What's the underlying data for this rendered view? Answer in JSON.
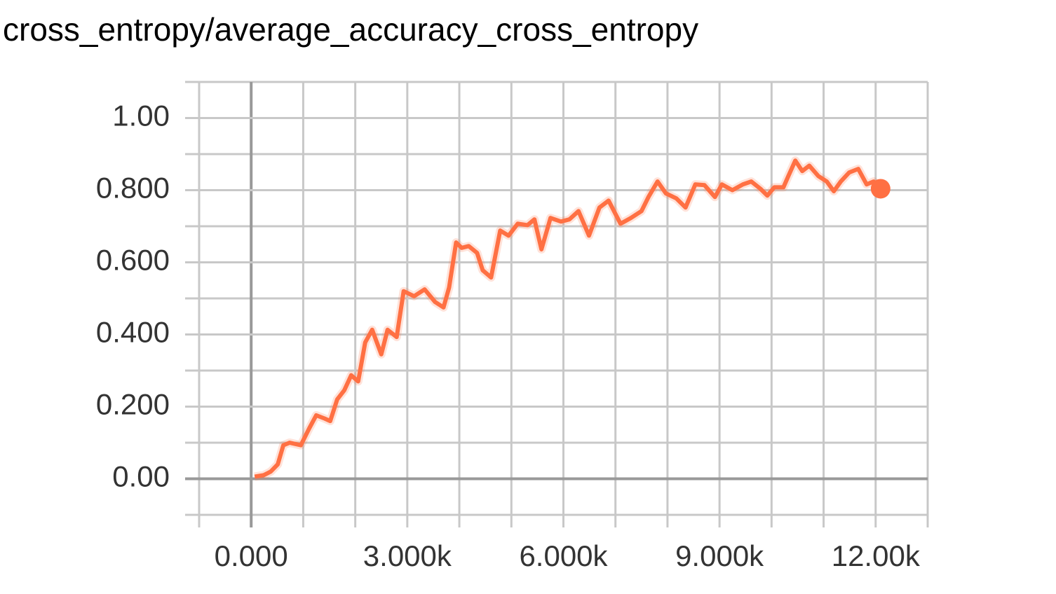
{
  "chart_data": {
    "type": "line",
    "title": "cross_entropy/average_accuracy_cross_entropy",
    "x": [
      67,
      242,
      376,
      511,
      618,
      739,
      954,
      1116,
      1250,
      1411,
      1519,
      1653,
      1788,
      1922,
      2056,
      2191,
      2325,
      2500,
      2621,
      2796,
      2930,
      3131,
      3333,
      3535,
      3696,
      3803,
      3938,
      4045,
      4180,
      4341,
      4449,
      4610,
      4785,
      4946,
      5121,
      5309,
      5443,
      5578,
      5752,
      5954,
      6115,
      6290,
      6492,
      6693,
      6868,
      7097,
      7298,
      7500,
      7634,
      7809,
      7970,
      8172,
      8347,
      8535,
      8710,
      8912,
      9045,
      9247,
      9449,
      9610,
      9785,
      9919,
      10053,
      10228,
      10322,
      10456,
      10590,
      10725,
      10900,
      11061,
      11196,
      11330,
      11491,
      11666,
      11827,
      11961,
      12095
    ],
    "series": [
      {
        "name": "average_accuracy_cross_entropy",
        "color": "#ff7043",
        "values": [
          0.006,
          0.01,
          0.02,
          0.04,
          0.093,
          0.1,
          0.093,
          0.14,
          0.176,
          0.167,
          0.16,
          0.22,
          0.245,
          0.287,
          0.27,
          0.378,
          0.413,
          0.345,
          0.413,
          0.393,
          0.52,
          0.506,
          0.525,
          0.49,
          0.475,
          0.53,
          0.655,
          0.64,
          0.645,
          0.626,
          0.578,
          0.558,
          0.688,
          0.674,
          0.707,
          0.703,
          0.719,
          0.636,
          0.723,
          0.713,
          0.719,
          0.742,
          0.674,
          0.752,
          0.771,
          0.707,
          0.723,
          0.742,
          0.781,
          0.824,
          0.791,
          0.777,
          0.752,
          0.816,
          0.814,
          0.781,
          0.816,
          0.8,
          0.816,
          0.824,
          0.804,
          0.785,
          0.808,
          0.808,
          0.839,
          0.882,
          0.853,
          0.868,
          0.839,
          0.824,
          0.797,
          0.824,
          0.849,
          0.859,
          0.816,
          0.824,
          0.804
        ]
      }
    ],
    "xlim": [
      -1000,
      13000
    ],
    "xticks": [
      {
        "value": 0,
        "label": "0.000"
      },
      {
        "value": 3000,
        "label": "3.000k"
      },
      {
        "value": 6000,
        "label": "6.000k"
      },
      {
        "value": 9000,
        "label": "9.000k"
      },
      {
        "value": 12000,
        "label": "12.00k"
      }
    ],
    "x_minor_ticks": [
      -1000,
      1000,
      2000,
      4000,
      5000,
      7000,
      8000,
      10000,
      11000,
      13000
    ],
    "ylim": [
      -0.1,
      1.1
    ],
    "yticks": [
      {
        "value": 0,
        "label": "0.00"
      },
      {
        "value": 0.2,
        "label": "0.200"
      },
      {
        "value": 0.4,
        "label": "0.400"
      },
      {
        "value": 0.6,
        "label": "0.600"
      },
      {
        "value": 0.8,
        "label": "0.800"
      },
      {
        "value": 1,
        "label": "1.00"
      }
    ],
    "y_minor_ticks": [
      -0.1,
      0.1,
      0.3,
      0.5,
      0.7,
      0.9,
      1.1
    ],
    "grid": true,
    "last_point_marker": true
  }
}
